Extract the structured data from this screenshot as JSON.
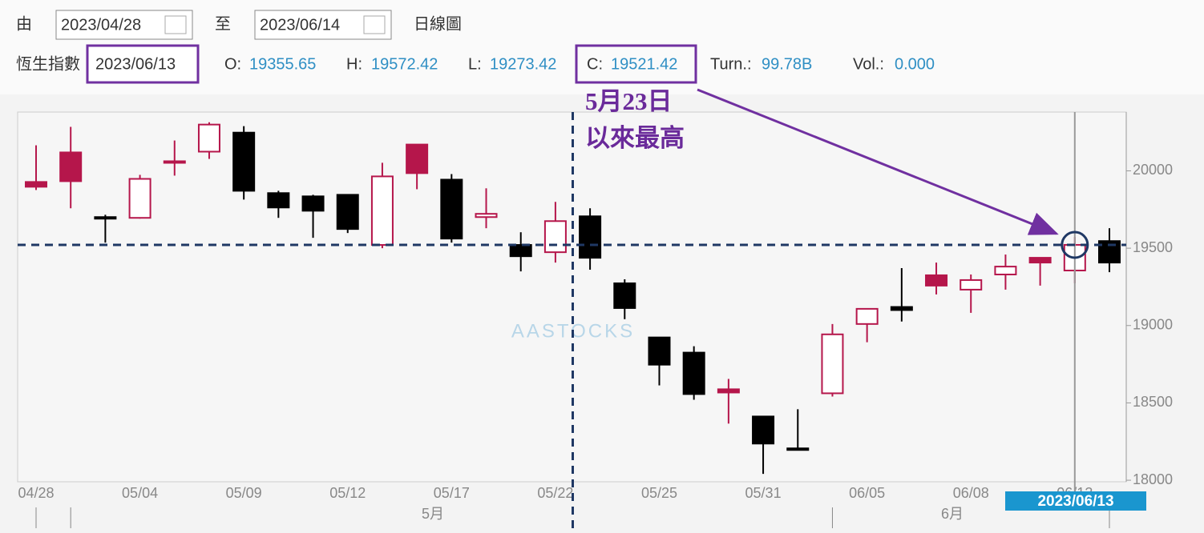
{
  "header": {
    "from_label": "由",
    "from_date": "2023/04/28",
    "to_label": "至",
    "to_date": "2023/06/14",
    "chart_type": "日線圖"
  },
  "quote": {
    "name": "恆生指數",
    "date": "2023/06/13",
    "open_label": "O:",
    "open": 19355.65,
    "high_label": "H:",
    "high": 19572.42,
    "low_label": "L:",
    "low": 19273.42,
    "close_label": "C:",
    "close": 19521.42,
    "turnover_label": "Turn.:",
    "turnover": "99.78B",
    "volume_label": "Vol.:",
    "volume": "0.000"
  },
  "annotation": {
    "lines": [
      "5月23日",
      "以來最高"
    ]
  },
  "chart_data": {
    "type": "candlestick",
    "categories": [
      "04/28",
      null,
      null,
      "05/04",
      null,
      null,
      "05/09",
      null,
      null,
      "05/12",
      null,
      null,
      "05/17",
      null,
      null,
      "05/22",
      null,
      null,
      "05/25",
      null,
      null,
      "05/31",
      null,
      null,
      "06/05",
      null,
      null,
      "06/08",
      null,
      null,
      "06/13",
      null
    ],
    "open": [
      19928,
      20119,
      19701,
      19696,
      20052,
      20124,
      20247,
      19856,
      19835,
      19845,
      19521,
      20170,
      19943,
      19701,
      19521,
      19474,
      19706,
      19273,
      18923,
      18825,
      18588,
      18412,
      18206,
      18562,
      19010,
      19120,
      19325,
      19232,
      19330,
      19438,
      19355.65,
      19546
    ],
    "high": [
      20165,
      20284,
      19716,
      19974,
      20196,
      20314,
      20289,
      19871,
      19845,
      19845,
      20052,
      20170,
      19979,
      19887,
      19603,
      19799,
      19758,
      19299,
      18923,
      18866,
      18655,
      18412,
      18459,
      19010,
      19108,
      19371,
      19407,
      19330,
      19459,
      19438,
      19572.42,
      19629
    ],
    "low": [
      19876,
      19758,
      19536,
      19691,
      19969,
      20077,
      19814,
      19696,
      19567,
      19598,
      19500,
      19881,
      19536,
      19629,
      19350,
      19407,
      19361,
      19041,
      18613,
      18520,
      18366,
      18041,
      18196,
      18541,
      18892,
      19026,
      19201,
      19082,
      19232,
      19258,
      19273.42,
      19345
    ],
    "close": [
      19897,
      19933,
      19696,
      19948,
      20062,
      20299,
      19871,
      19763,
      19742,
      19624,
      19964,
      19985,
      19562,
      19722,
      19448,
      19675,
      19438,
      19113,
      18747,
      18557,
      18567,
      18237,
      18196,
      18943,
      19108,
      19100,
      19258,
      19294,
      19381,
      19407,
      19521.42,
      19407
    ],
    "up_color": "#b5164b",
    "down_color": "#000000",
    "ylim": [
      17990,
      20380
    ],
    "yticks": [
      18000,
      18500,
      19000,
      19500,
      20000
    ],
    "month_labels": [
      "5月",
      "6月"
    ],
    "cursor_label": "2023/06/13",
    "watermark": "AASTOCKS"
  }
}
